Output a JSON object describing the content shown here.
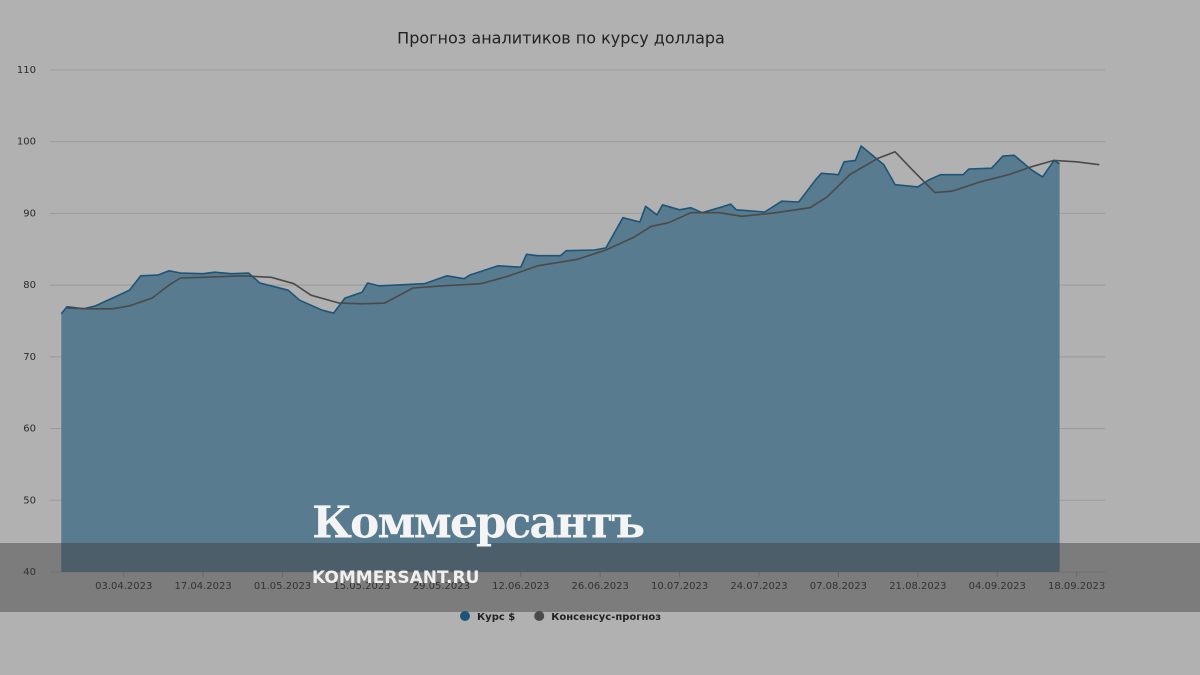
{
  "chart_data": {
    "type": "area",
    "title": "Прогноз аналитиков по курсу доллара",
    "ylim": [
      40,
      110
    ],
    "yticks": [
      40,
      50,
      60,
      70,
      80,
      90,
      100,
      110
    ],
    "grid": true,
    "xlim": [
      "21.03.2023",
      "23.09.2023"
    ],
    "xticks": [
      "03.04.2023",
      "17.04.2023",
      "01.05.2023",
      "15.05.2023",
      "29.05.2023",
      "12.06.2023",
      "26.06.2023",
      "10.07.2023",
      "24.07.2023",
      "07.08.2023",
      "21.08.2023",
      "04.09.2023",
      "18.09.2023"
    ],
    "legend": "bottom",
    "series": [
      {
        "name": "Курс $",
        "color": "#1d5478",
        "fill": "#587b8f",
        "x": [
          "23.03.2023",
          "24.03.2023",
          "27.03.2023",
          "29.03.2023",
          "01.04.2023",
          "04.04.2023",
          "06.04.2023",
          "09.04.2023",
          "11.04.2023",
          "13.04.2023",
          "17.04.2023",
          "19.04.2023",
          "22.04.2023",
          "25.04.2023",
          "27.04.2023",
          "02.05.2023",
          "04.05.2023",
          "08.05.2023",
          "10.05.2023",
          "12.05.2023",
          "15.05.2023",
          "16.05.2023",
          "18.05.2023",
          "21.05.2023",
          "26.05.2023",
          "30.05.2023",
          "02.06.2023",
          "03.06.2023",
          "08.06.2023",
          "12.06.2023",
          "13.06.2023",
          "15.06.2023",
          "19.06.2023",
          "20.06.2023",
          "25.06.2023",
          "27.06.2023",
          "30.06.2023",
          "03.07.2023",
          "04.07.2023",
          "06.07.2023",
          "07.07.2023",
          "10.07.2023",
          "12.07.2023",
          "14.07.2023",
          "17.07.2023",
          "19.07.2023",
          "20.07.2023",
          "25.07.2023",
          "28.07.2023",
          "31.07.2023",
          "03.08.2023",
          "04.08.2023",
          "07.08.2023",
          "08.08.2023",
          "10.08.2023",
          "11.08.2023",
          "13.08.2023",
          "15.08.2023",
          "17.08.2023",
          "21.08.2023",
          "23.08.2023",
          "25.08.2023",
          "29.08.2023",
          "30.08.2023",
          "03.09.2023",
          "05.09.2023",
          "07.09.2023",
          "10.09.2023",
          "12.09.2023",
          "14.09.2023",
          "15.09.2023"
        ],
        "values": [
          76.0,
          77.0,
          76.7,
          77.1,
          78.2,
          79.3,
          81.3,
          81.4,
          82.0,
          81.7,
          81.6,
          81.8,
          81.6,
          81.7,
          80.3,
          79.3,
          77.9,
          76.5,
          76.1,
          78.2,
          79.0,
          80.3,
          79.9,
          80.0,
          80.2,
          81.3,
          80.9,
          81.4,
          82.7,
          82.5,
          84.3,
          84.1,
          84.1,
          84.8,
          84.9,
          85.2,
          89.4,
          88.8,
          91.0,
          89.8,
          91.2,
          90.5,
          90.8,
          90.1,
          90.8,
          91.3,
          90.5,
          90.2,
          91.7,
          91.6,
          94.7,
          95.6,
          95.4,
          97.2,
          97.4,
          99.4,
          98.1,
          96.8,
          94.0,
          93.7,
          94.7,
          95.4,
          95.4,
          96.2,
          96.3,
          98.0,
          98.1,
          96.1,
          95.1,
          97.4,
          96.9
        ]
      },
      {
        "name": "Консенсус-прогноз",
        "color": "#4a4a4a",
        "x": [
          "24.03.2023",
          "28.03.2023",
          "01.04.2023",
          "04.04.2023",
          "08.04.2023",
          "11.04.2023",
          "13.04.2023",
          "17.04.2023",
          "24.04.2023",
          "29.04.2023",
          "03.05.2023",
          "06.05.2023",
          "11.05.2023",
          "15.05.2023",
          "19.05.2023",
          "24.05.2023",
          "29.05.2023",
          "05.06.2023",
          "10.06.2023",
          "15.06.2023",
          "22.06.2023",
          "27.06.2023",
          "02.07.2023",
          "05.07.2023",
          "08.07.2023",
          "12.07.2023",
          "17.07.2023",
          "21.07.2023",
          "27.07.2023",
          "02.08.2023",
          "05.08.2023",
          "09.08.2023",
          "14.08.2023",
          "17.08.2023",
          "20.08.2023",
          "24.08.2023",
          "27.08.2023",
          "01.09.2023",
          "06.09.2023",
          "10.09.2023",
          "14.09.2023",
          "18.09.2023",
          "22.09.2023"
        ],
        "values": [
          76.8,
          76.7,
          76.7,
          77.1,
          78.2,
          80.0,
          81.0,
          81.1,
          81.3,
          81.1,
          80.2,
          78.6,
          77.5,
          77.4,
          77.5,
          79.6,
          79.9,
          80.2,
          81.3,
          82.7,
          83.6,
          84.9,
          86.7,
          88.2,
          88.7,
          90.1,
          90.1,
          89.6,
          90.1,
          90.8,
          92.3,
          95.4,
          97.7,
          98.6,
          96.1,
          92.9,
          93.1,
          94.4,
          95.4,
          96.5,
          97.4,
          97.2,
          96.8
        ]
      }
    ]
  },
  "watermark": {
    "brand": "Коммерсантъ",
    "site": "KOMMERSANT.RU"
  }
}
